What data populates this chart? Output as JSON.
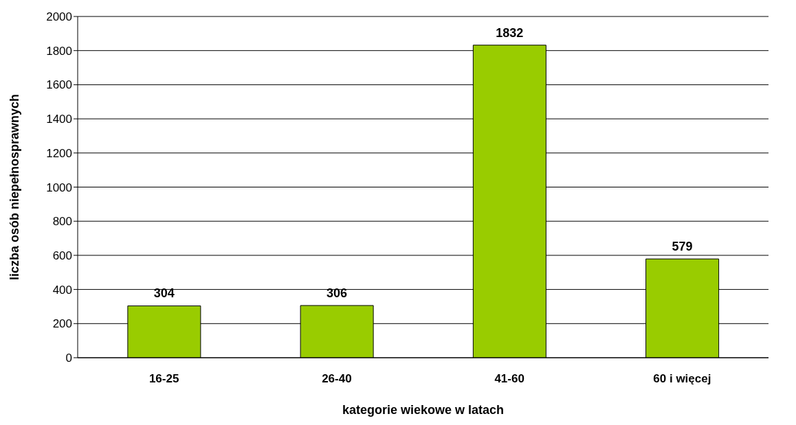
{
  "chart_data": {
    "type": "bar",
    "xlabel": "kategorie wiekowe w latach",
    "ylabel": "liczba osób niepełnosprawnych",
    "categories": [
      "16-25",
      "26-40",
      "41-60",
      "60 i więcej"
    ],
    "values": [
      304,
      306,
      1832,
      579
    ],
    "color": "#99cc00",
    "ylim": [
      0,
      2000
    ],
    "yticks": [
      0,
      200,
      400,
      600,
      800,
      1000,
      1200,
      1400,
      1600,
      1800,
      2000
    ],
    "grid": "y",
    "data_labels": true
  }
}
